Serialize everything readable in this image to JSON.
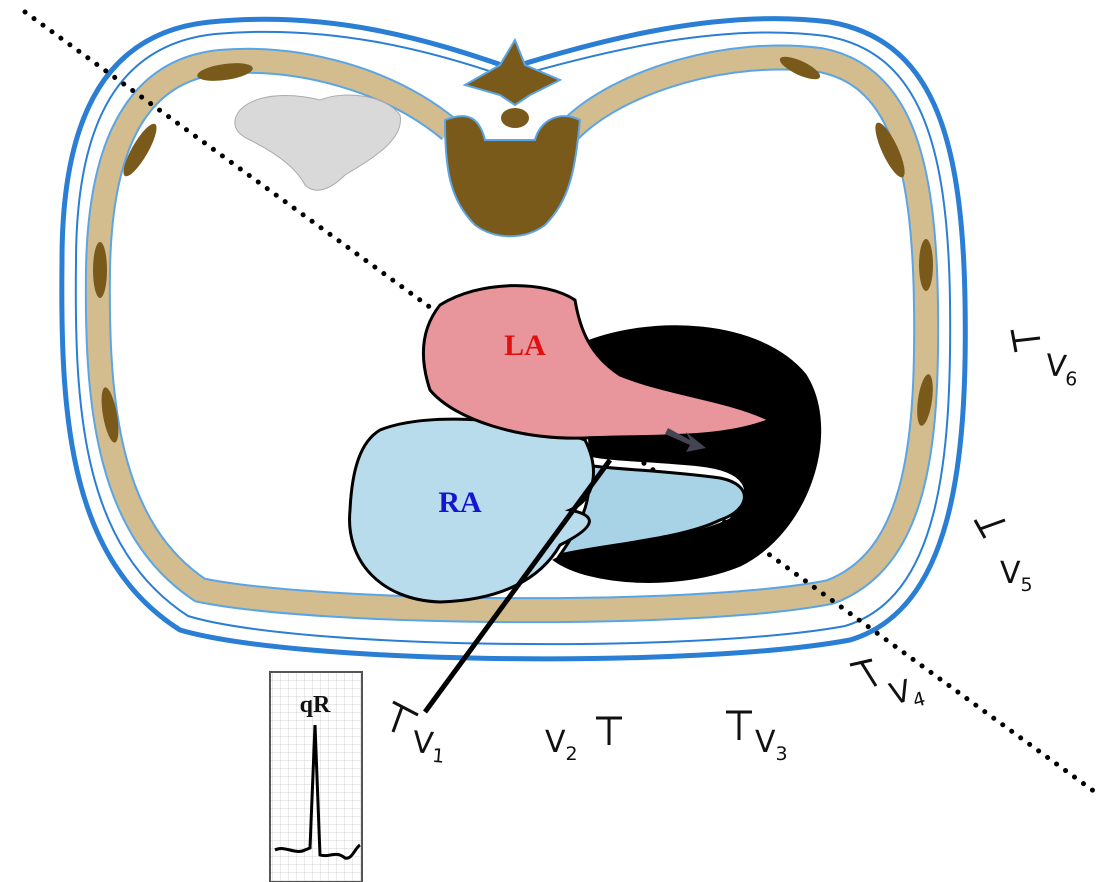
{
  "chambers": {
    "left_atrium": "LA",
    "right_atrium": "RA"
  },
  "ecg_strip": {
    "label": "qR"
  },
  "leads": [
    {
      "letter": "V",
      "number": "1"
    },
    {
      "letter": "V",
      "number": "2"
    },
    {
      "letter": "V",
      "number": "3"
    },
    {
      "letter": "V",
      "number": "4"
    },
    {
      "letter": "V",
      "number": "5"
    },
    {
      "letter": "V",
      "number": "6"
    }
  ]
}
